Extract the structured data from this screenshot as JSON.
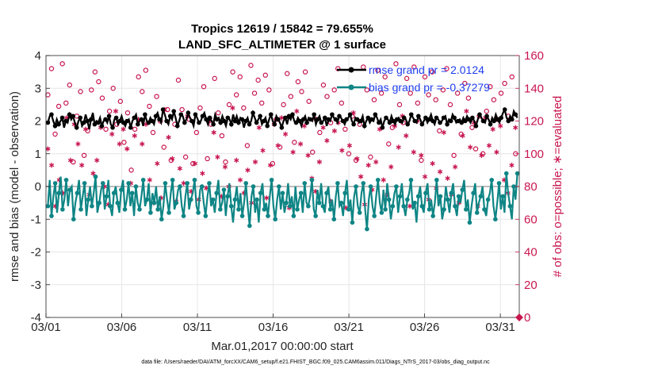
{
  "chart_data": {
    "type": "line",
    "title_line1": "Tropics 12619 / 15842 = 79.655%",
    "title_line2": "LAND_SFC_ALTIMETER @ 1 surface",
    "xlabel": "Mar.01,2017 00:00:00 start",
    "ylabel_left": "rmse and bias (model - observation)",
    "ylabel_right": "# of obs: o=possible; ∗=evaluated",
    "x_ticks": [
      "03/01",
      "03/06",
      "03/11",
      "03/16",
      "03/21",
      "03/26",
      "03/31"
    ],
    "x_tick_days": [
      0,
      5,
      10,
      15,
      20,
      25,
      30
    ],
    "xlim": [
      0,
      31.25
    ],
    "ylim_left": [
      -4,
      4
    ],
    "y_ticks_left": [
      "4",
      "3",
      "2",
      "1",
      "0",
      "-1",
      "-2",
      "-3",
      "-4"
    ],
    "ylim_right": [
      0,
      160
    ],
    "y_ticks_right": [
      "160",
      "140",
      "120",
      "100",
      "80",
      "60",
      "40",
      "20",
      "0"
    ],
    "legend": [
      "rmse grand pr = 2.0124",
      "bias grand pr = -0.37279"
    ],
    "footnote": "data file: /Users/raeder/DAI/ATM_forcXX/CAM6_setup/f.e21.FHIST_BGC.f09_025.CAM6assim.011/Diags_NTrS_2017-03/obs_diag_output.nc",
    "series": [
      {
        "name": "rmse",
        "color": "#000000",
        "axis": "left",
        "values": [
          1.95,
          2.15,
          2.2,
          2.0,
          1.85,
          2.05,
          1.9,
          2.0,
          2.1,
          1.8,
          2.0,
          1.95,
          2.2,
          2.05,
          2.15,
          1.95,
          1.8,
          2.0,
          2.1,
          1.85,
          1.95,
          2.2,
          2.0,
          1.75,
          2.05,
          2.25,
          1.9,
          2.0,
          1.95,
          2.1,
          1.85,
          2.0,
          2.05,
          1.95,
          2.15,
          1.9,
          1.8,
          2.05,
          2.1,
          1.9,
          2.0,
          2.15,
          1.95,
          1.85,
          2.0,
          2.05,
          1.8,
          2.0,
          2.1,
          2.2,
          1.9,
          2.0,
          2.05,
          1.85,
          2.2,
          2.0,
          1.95,
          2.1,
          2.0,
          1.9,
          2.15,
          2.25,
          2.05,
          1.95,
          2.35,
          2.2,
          2.0,
          1.9,
          2.15,
          2.05,
          2.3,
          2.1,
          1.85,
          2.0,
          2.2,
          2.15,
          1.95,
          2.05,
          2.25,
          2.1,
          2.0,
          1.85,
          2.2,
          2.1,
          1.95,
          2.0,
          2.15,
          2.25,
          2.05,
          1.9,
          2.1,
          2.0,
          1.9,
          2.2,
          2.05,
          2.1,
          1.95,
          2.15,
          2.0,
          1.85,
          2.1,
          2.05,
          1.9,
          2.2,
          2.0,
          2.15,
          1.95,
          2.1,
          2.05,
          1.8,
          2.0,
          2.1,
          1.9,
          2.0,
          2.25,
          2.1,
          1.95,
          2.05,
          2.15,
          1.9,
          2.0,
          2.1,
          1.85,
          2.05,
          2.2,
          2.0,
          1.9,
          2.15,
          2.05,
          1.95,
          1.8,
          2.0,
          2.1,
          1.9,
          2.15,
          2.05,
          2.2,
          2.0,
          1.95,
          2.1,
          2.0,
          1.85,
          2.05,
          2.15,
          1.95,
          2.1,
          2.05,
          2.0,
          2.2,
          1.9,
          2.05,
          2.15,
          1.95,
          2.0,
          2.1,
          1.85,
          2.05,
          2.0,
          2.2,
          2.1,
          2.05,
          1.95,
          2.15,
          2.1,
          2.0,
          1.9,
          2.05,
          2.1,
          2.2,
          2.0,
          1.9,
          2.1,
          2.05,
          1.95,
          2.0,
          2.15,
          1.85,
          2.0,
          2.1,
          1.95,
          2.05,
          2.0,
          2.2,
          2.1,
          1.95,
          2.05,
          1.8,
          2.0,
          2.1,
          2.05,
          1.95,
          2.15,
          2.0,
          1.9,
          2.05,
          2.1,
          2.0,
          1.95,
          2.1,
          2.05,
          1.9,
          2.0,
          2.2,
          2.1,
          2.0,
          1.95,
          2.15,
          2.05,
          1.9,
          2.0,
          2.1,
          1.95,
          2.05,
          2.2,
          2.0,
          1.9,
          2.1,
          2.05,
          1.95,
          2.0,
          2.1,
          2.15,
          1.9,
          2.05,
          2.0,
          2.2,
          2.1,
          1.95,
          2.0,
          2.05,
          1.95,
          2.1,
          2.0,
          2.15,
          2.05,
          1.95,
          2.1,
          2.0,
          1.85,
          2.05,
          2.2,
          2.1,
          2.0,
          1.95,
          2.15,
          2.05,
          1.9,
          2.1,
          2.0,
          2.2,
          2.05,
          1.95,
          2.1,
          2.25,
          2.35,
          2.1,
          2.0,
          2.15,
          2.05,
          2.3,
          2.2,
          2.1
        ]
      },
      {
        "name": "bias",
        "color": "#0f8585",
        "axis": "left",
        "values": [
          -0.6,
          0.2,
          -0.9,
          -0.3,
          0.1,
          -0.8,
          -0.2,
          0.3,
          -0.7,
          -0.4,
          0.2,
          -0.6,
          -0.1,
          0.0,
          -1.0,
          -0.5,
          -0.2,
          0.2,
          -0.7,
          -0.3,
          0.1,
          -0.9,
          -0.4,
          0.0,
          -0.6,
          -0.2,
          0.3,
          -0.8,
          -0.5,
          -0.1,
          0.1,
          -0.7,
          -0.3,
          0.2,
          -0.6,
          -0.9,
          -0.2,
          0.0,
          -0.5,
          -0.8,
          -0.1,
          0.2,
          -0.7,
          -0.4,
          0.1,
          -0.6,
          -0.2,
          -0.9,
          0.0,
          -0.5,
          -0.7,
          -0.3,
          0.2,
          -0.6,
          -0.4,
          0.1,
          -0.8,
          -0.2,
          -0.5,
          0.0,
          -0.7,
          -0.3,
          -1.0,
          -0.6,
          0.1,
          -0.4,
          -0.8,
          -0.2,
          0.2,
          -0.7,
          -0.5,
          -0.1,
          0.0,
          -0.6,
          -0.9,
          -0.3,
          0.1,
          -0.7,
          -0.4,
          -0.2,
          0.2,
          -0.6,
          -0.8,
          -0.1,
          0.0,
          -0.5,
          -0.9,
          -0.3,
          0.1,
          -0.6,
          -0.4,
          -0.8,
          -0.2,
          0.2,
          -0.7,
          -0.5,
          -0.1,
          -0.9,
          -0.3,
          0.1,
          -0.6,
          -1.1,
          -0.4,
          0.0,
          -0.7,
          -0.2,
          -0.9,
          -0.5,
          0.1,
          -0.6,
          -1.2,
          -0.3,
          0.0,
          -0.8,
          -0.4,
          -1.1,
          -0.2,
          0.1,
          -0.7,
          -0.5,
          -0.9,
          -0.3,
          0.2,
          -0.6,
          -1.0,
          -0.4,
          0.0,
          -0.7,
          -0.2,
          -0.8,
          -0.5,
          0.1,
          -0.6,
          -0.3,
          -0.9,
          0.0,
          -0.7,
          -0.4,
          -0.2,
          -0.8,
          0.1,
          -0.5,
          -0.6,
          -0.3,
          0.2,
          -0.7,
          -0.9,
          -0.1,
          -0.5,
          0.1,
          -0.6,
          -0.8,
          -0.2,
          0.0,
          -0.7,
          -0.4,
          -1.0,
          -0.3,
          0.1,
          -0.6,
          -0.5,
          -0.9,
          -0.2,
          0.2,
          -0.7,
          -0.4,
          -1.1,
          -0.3,
          0.0,
          -0.6,
          -0.8,
          -0.2,
          0.1,
          -0.7,
          -1.3,
          -0.4,
          0.0,
          -0.6,
          -0.9,
          -0.3,
          0.2,
          -0.5,
          -0.8,
          -0.1,
          -0.7,
          0.1,
          -0.4,
          -1.0,
          -0.6,
          -0.2,
          0.0,
          -0.8,
          -0.3,
          0.1,
          -0.6,
          -0.9,
          -0.4,
          -0.2,
          0.2,
          -0.7,
          -0.5,
          -1.1,
          -0.3,
          0.0,
          -0.6,
          -0.8,
          -0.2,
          0.1,
          -0.7,
          -0.4,
          -0.9,
          -0.5,
          0.2,
          -0.6,
          -0.3,
          -1.0,
          -0.7,
          0.0,
          -0.4,
          -0.8,
          -0.2,
          0.1,
          -0.6,
          -0.9,
          -0.3,
          -0.5,
          -0.1,
          0.2,
          -0.7,
          -0.4,
          -1.1,
          -0.6,
          -0.2,
          0.1,
          -0.8,
          -0.5,
          -0.3,
          0.0,
          -0.7,
          -0.9,
          -0.4,
          -0.2,
          0.2,
          -0.6,
          -1.0,
          -0.5,
          0.1,
          -0.7,
          -0.3,
          -0.8,
          0.4,
          -0.2,
          -0.6,
          -1.0,
          0.0,
          -0.4,
          0.4
        ]
      },
      {
        "name": "obs possible",
        "color": "#c8164f",
        "axis": "right",
        "values": [
          136,
          101,
          152,
          148,
          112,
          140,
          129,
          97,
          155,
          145,
          131,
          100,
          142,
          133,
          95,
          147,
          123,
          108,
          138,
          143,
          99,
          152,
          114,
          128,
          139,
          96,
          150,
          121,
          144,
          91,
          134,
          153,
          115,
          138,
          126,
          102,
          140,
          148,
          118,
          94,
          132,
          141,
          107,
          155,
          125,
          136,
          90,
          146,
          115,
          132,
          147,
          103,
          138,
          124,
          151,
          99,
          129,
          144,
          113,
          93,
          135,
          155,
          120,
          141,
          104,
          148,
          127,
          139,
          96,
          153,
          118,
          133,
          145,
          108,
          127,
          140,
          98,
          150,
          121,
          137,
          94,
          146,
          113,
          152,
          128,
          104,
          141,
          135,
          97,
          149,
          118,
          132,
          146,
          107,
          125,
          155,
          111,
          139,
          95,
          143,
          130,
          103,
          150,
          121,
          136,
          99,
          147,
          114,
          128,
          142,
          105,
          133,
          154,
          118,
          137,
          96,
          145,
          122,
          131,
          101,
          148,
          112,
          139,
          127,
          94,
          151,
          121,
          136,
          104,
          143,
          130,
          98,
          149,
          117,
          135,
          154,
          107,
          127,
          144,
          93,
          138,
          124,
          150,
          110,
          132,
          146,
          101,
          137,
          121,
          155,
          113,
          129,
          142,
          97,
          135,
          147,
          119,
          104,
          139,
          126,
          152,
          95,
          131,
          143,
          115,
          137,
          100,
          148,
          123,
          134,
          96,
          145,
          118,
          130,
          153,
          109,
          139,
          126,
          98,
          144,
          133,
          112,
          151,
          121,
          137,
          95,
          147,
          128,
          106,
          140,
          116,
          134,
          155,
          100,
          130,
          144,
          119,
          99,
          146,
          124,
          137,
          104,
          153,
          117,
          131,
          141,
          96,
          128,
          147,
          110,
          136,
          121,
          150,
          101,
          133,
          143,
          114,
          97,
          139,
          127,
          152,
          105,
          130,
          145,
          99,
          119,
          137,
          148,
          112,
          126,
          143,
          95,
          134,
          155,
          116,
          131,
          103,
          145,
          123,
          138,
          100,
          149,
          126,
          118,
          141,
          97,
          133,
          146,
          121,
          103,
          137,
          150,
          143,
          140,
          123,
          136,
          147,
          112,
          100,
          142
        ]
      },
      {
        "name": "obs evaluated",
        "color": "#c8164f",
        "axis": "right",
        "values": [
          103,
          74,
          93,
          117,
          68,
          107,
          84,
          112,
          76,
          102,
          122,
          70,
          96,
          85,
          118,
          74,
          106,
          131,
          93,
          68,
          115,
          101,
          75,
          124,
          88,
          110,
          96,
          72,
          116,
          104,
          80,
          120,
          69,
          98,
          112,
          84,
          126,
          74,
          106,
          91,
          115,
          68,
          103,
          129,
          82,
          97,
          111,
          75,
          121,
          90,
          106,
          72,
          118,
          99,
          84,
          125,
          70,
          108,
          94,
          117,
          73,
          102,
          127,
          86,
          110,
          78,
          97,
          120,
          71,
          105,
          91,
          115,
          82,
          68,
          123,
          99,
          77,
          108,
          94,
          126,
          72,
          104,
          88,
          116,
          79,
          100,
          121,
          69,
          113,
          85,
          98,
          124,
          74,
          107,
          92,
          117,
          80,
          103,
          128,
          71,
          96,
          111,
          84,
          119,
          76,
          101,
          90,
          123,
          70,
          108,
          95,
          79,
          116,
          86,
          102,
          125,
          73,
          110,
          93,
          81,
          118,
          70,
          105,
          97,
          122,
          76,
          112,
          88,
          67,
          114,
          101,
          83,
          126,
          74,
          106,
          92,
          117,
          69,
          99,
          110,
          85,
          120,
          77,
          104,
          95,
          72,
          116,
          89,
          108,
          124,
          71,
          98,
          114,
          82,
          119,
          76,
          102,
          90,
          67,
          113,
          105,
          80,
          125,
          73,
          97,
          111,
          86,
          118,
          69,
          103,
          93,
          121,
          78,
          107,
          95,
          70,
          115,
          100,
          84,
          127,
          75,
          109,
          92,
          81,
          117,
          71,
          104,
          97,
          123,
          74,
          111,
          88,
          68,
          114,
          101,
          82,
          120,
          77,
          99,
          108,
          86,
          124,
          72,
          106,
          94,
          118,
          79,
          103,
          89,
          69,
          113,
          98,
          85,
          121,
          75,
          107,
          92,
          116,
          70,
          100,
          111,
          83,
          126,
          73,
          104,
          95,
          119,
          78,
          68,
          109,
          99,
          87,
          122,
          74,
          105,
          90,
          115,
          80,
          101,
          71,
          117,
          96,
          84,
          123,
          76,
          110,
          93,
          120,
          116,
          98
        ]
      }
    ]
  }
}
